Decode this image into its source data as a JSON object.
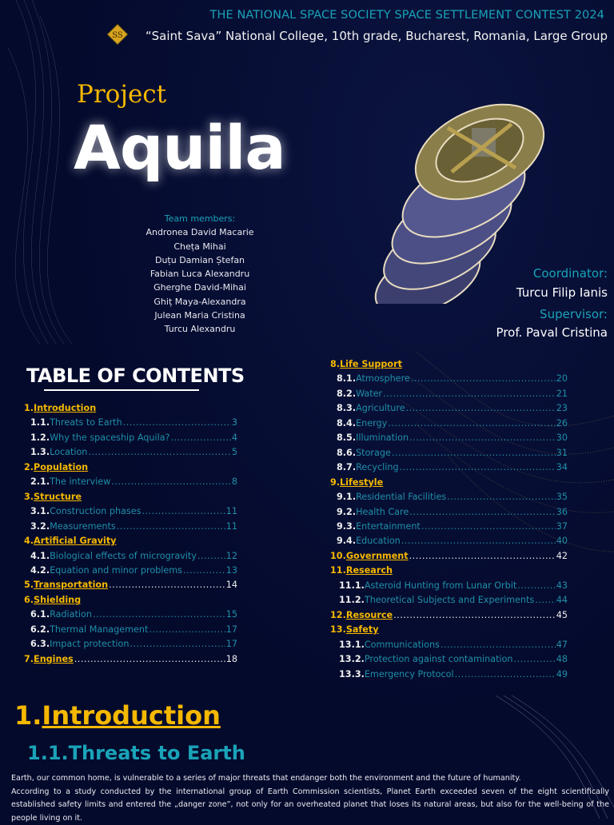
{
  "header": {
    "contest": "THE NATIONAL SPACE SOCIETY SPACE SETTLEMENT CONTEST 2024",
    "college": "“Saint Sava” National College, 10th grade, Bucharest, Romania, Large Group",
    "logo_icon": "college-crest-icon"
  },
  "cover": {
    "project": "Project",
    "name": "Aquila",
    "team_label": "Team members:",
    "team": [
      "Andronea David Macarie",
      "Cheța Mihai",
      "Duțu Damian Ștefan",
      "Fabian Luca Alexandru",
      "Gherghe David-Mihai",
      "Ghiț Maya-Alexandra",
      "Julean Maria Cristina",
      "Turcu Alexandru"
    ],
    "coordinator_label": "Coordinator:",
    "coordinator": "Turcu Filip Ianis",
    "supervisor_label": "Supervisor:",
    "supervisor": "Prof. Paval Cristina"
  },
  "toc": {
    "title": "TABLE OF CONTENTS",
    "left": [
      {
        "type": "sec",
        "num": "1.",
        "title": "Introduction",
        "page": ""
      },
      {
        "type": "sub",
        "num": "1.1.",
        "title": "Threats to Earth",
        "page": "3"
      },
      {
        "type": "sub",
        "num": "1.2.",
        "title": "Why the spaceship Aquila?",
        "page": "4"
      },
      {
        "type": "sub",
        "num": "1.3.",
        "title": "Location",
        "page": "5"
      },
      {
        "type": "sec",
        "num": "2.",
        "title": "Population",
        "page": ""
      },
      {
        "type": "sub",
        "num": "2.1.",
        "title": "The interview",
        "page": "8"
      },
      {
        "type": "sec",
        "num": "3.",
        "title": "Structure",
        "page": ""
      },
      {
        "type": "sub",
        "num": "3.1.",
        "title": "Construction phases",
        "page": "11"
      },
      {
        "type": "sub",
        "num": "3.2.",
        "title": "Measurements",
        "page": "11"
      },
      {
        "type": "sec",
        "num": "4.",
        "title": "Artificial Gravity",
        "page": ""
      },
      {
        "type": "sub",
        "num": "4.1.",
        "title": "Biological effects of microgravity",
        "page": "12"
      },
      {
        "type": "sub",
        "num": "4.2.",
        "title": "Equation and minor problems",
        "page": "13"
      },
      {
        "type": "sec",
        "num": "5.",
        "title": "Transportation",
        "page": "14"
      },
      {
        "type": "sec",
        "num": "6.",
        "title": "Shielding",
        "page": ""
      },
      {
        "type": "sub",
        "num": "6.1.",
        "title": "Radiation",
        "page": "15"
      },
      {
        "type": "sub",
        "num": "6.2.",
        "title": "Thermal Management",
        "page": "17"
      },
      {
        "type": "sub",
        "num": "6.3.",
        "title": "Impact protection",
        "page": "17"
      },
      {
        "type": "sec",
        "num": "7.",
        "title": "Engines",
        "page": "18"
      }
    ],
    "right": [
      {
        "type": "sec",
        "num": "8.",
        "title": "Life Support",
        "page": ""
      },
      {
        "type": "sub",
        "num": "8.1.",
        "title": "Atmosphere",
        "page": "20"
      },
      {
        "type": "sub",
        "num": "8.2.",
        "title": "Water",
        "page": "21"
      },
      {
        "type": "sub",
        "num": "8.3.",
        "title": "Agriculture",
        "page": "23"
      },
      {
        "type": "sub",
        "num": "8.4.",
        "title": "Energy",
        "page": "26"
      },
      {
        "type": "sub",
        "num": "8.5.",
        "title": "Illumination",
        "page": "30"
      },
      {
        "type": "sub",
        "num": "8.6.",
        "title": "Storage",
        "page": "31"
      },
      {
        "type": "sub",
        "num": "8.7.",
        "title": "Recycling",
        "page": "34"
      },
      {
        "type": "sec",
        "num": "9.",
        "title": "Lifestyle",
        "page": ""
      },
      {
        "type": "sub",
        "num": "9.1.",
        "title": "Residential Facilities",
        "page": "35"
      },
      {
        "type": "sub",
        "num": "9.2.",
        "title": "Health Care",
        "page": "36"
      },
      {
        "type": "sub",
        "num": "9.3.",
        "title": "Entertainment",
        "page": "37"
      },
      {
        "type": "sub",
        "num": "9.4.",
        "title": "Education",
        "page": "40"
      },
      {
        "type": "sec",
        "num": "10.",
        "title": "Government",
        "page": "42"
      },
      {
        "type": "sec",
        "num": "11.",
        "title": "Research",
        "page": ""
      },
      {
        "type": "sub",
        "num": "11.1.",
        "title": "Asteroid Hunting from Lunar Orbit",
        "page": "43"
      },
      {
        "type": "sub",
        "num": "11.2.",
        "title": "Theoretical Subjects and Experiments",
        "page": "44"
      },
      {
        "type": "sec",
        "num": "12.",
        "title": "Resource",
        "page": "45"
      },
      {
        "type": "sec",
        "num": "13.",
        "title": "Safety",
        "page": ""
      },
      {
        "type": "sub",
        "num": "13.1.",
        "title": "Communications",
        "page": "47"
      },
      {
        "type": "sub",
        "num": "13.2.",
        "title": "Protection against contamination",
        "page": "48"
      },
      {
        "type": "sub",
        "num": "13.3.",
        "title": "Emergency Protocol",
        "page": "49"
      }
    ]
  },
  "intro": {
    "num": "1.",
    "title": "Introduction",
    "sub_title": "1.1.Threats to Earth",
    "p1": "Earth, our common home, is vulnerable to a series of major threats that endanger both the environment and the future of humanity.",
    "p2": "According to a study conducted by the international group of Earth Commission scientists, Planet Earth exceeded seven of the eight scientifically established safety limits and entered the „danger zone”, not only for an overheated planet that loses its natural areas, but also for the well-being of the people living on it."
  },
  "colors": {
    "background": "#040a2c",
    "gold": "#f5b800",
    "teal": "#1aa3b8"
  }
}
